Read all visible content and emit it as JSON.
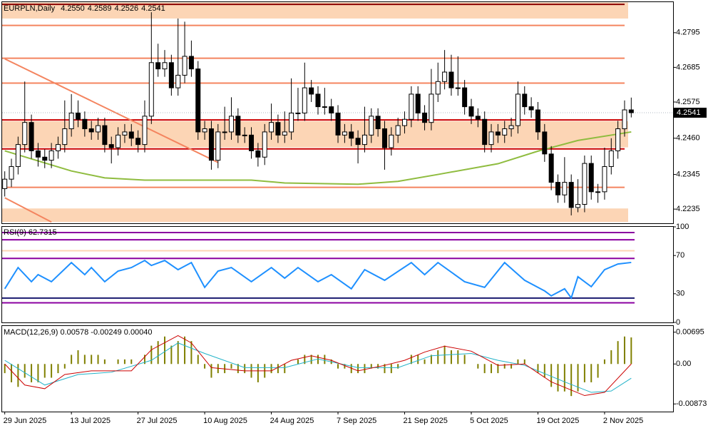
{
  "chart_data": [
    {
      "type": "candlestick",
      "symbol_label": "EURPLN,Daily",
      "ohlc_labels": [
        "4.2550",
        "4.2589",
        "4.2526",
        "4.2541"
      ],
      "categories": [
        "29 Jun 2025",
        null,
        null,
        null,
        null,
        null,
        null,
        null,
        null,
        null,
        "13 Jul 2025",
        null,
        null,
        null,
        null,
        null,
        null,
        null,
        null,
        null,
        "27 Jul 2025",
        null,
        null,
        null,
        null,
        null,
        null,
        null,
        null,
        null,
        "10 Aug 2025",
        null,
        null,
        null,
        null,
        null,
        null,
        null,
        null,
        null,
        "24 Aug 2025",
        null,
        null,
        null,
        null,
        null,
        null,
        null,
        null,
        null,
        "7 Sep 2025",
        null,
        null,
        null,
        null,
        null,
        null,
        null,
        null,
        null,
        "21 Sep 2025",
        null,
        null,
        null,
        null,
        null,
        null,
        null,
        null,
        null,
        "5 Oct 2025",
        null,
        null,
        null,
        null,
        null,
        null,
        null,
        null,
        null,
        "19 Oct 2025",
        null,
        null,
        null,
        null,
        null,
        null,
        null,
        null,
        null,
        "2 Nov 2025",
        null,
        null,
        null,
        null
      ],
      "open": [
        4.23,
        4.233,
        4.237,
        4.244,
        4.251,
        4.242,
        4.24,
        4.239,
        4.242,
        4.244,
        4.249,
        4.254,
        4.252,
        4.249,
        4.248,
        4.25,
        4.244,
        4.243,
        4.247,
        4.248,
        4.246,
        4.244,
        4.253,
        4.27,
        4.268,
        4.27,
        4.262,
        4.266,
        4.272,
        4.268,
        4.248,
        4.249,
        4.239,
        4.248,
        4.248,
        4.253,
        4.247,
        4.247,
        4.242,
        4.24,
        4.248,
        4.251,
        4.247,
        4.248,
        4.254,
        4.254,
        4.262,
        4.26,
        4.256,
        4.256,
        4.254,
        4.247,
        4.248,
        4.246,
        4.244,
        4.247,
        4.253,
        4.249,
        4.243,
        4.247,
        4.25,
        4.252,
        4.26,
        4.254,
        4.251,
        4.26,
        4.264,
        4.267,
        4.262,
        4.262,
        4.256,
        4.253,
        4.252,
        4.244,
        4.248,
        4.247,
        4.249,
        4.25,
        4.26,
        4.256,
        4.255,
        4.248,
        4.241,
        4.232,
        4.228,
        4.232,
        4.224,
        4.225,
        4.238,
        4.229,
        4.229,
        4.237,
        4.242,
        4.249,
        4.255
      ],
      "high": [
        4.2355,
        4.2395,
        4.2465,
        4.264,
        4.2535,
        4.2445,
        4.2425,
        4.2445,
        4.2465,
        4.258,
        4.26,
        4.258,
        4.2545,
        4.2515,
        4.2525,
        4.2525,
        4.2465,
        4.2495,
        4.2505,
        4.2505,
        4.2485,
        4.258,
        4.286,
        4.276,
        4.274,
        4.2725,
        4.284,
        4.283,
        4.277,
        4.2705,
        4.2515,
        4.2515,
        4.2505,
        4.256,
        4.259,
        4.2555,
        4.2495,
        4.2495,
        4.2445,
        4.2505,
        4.257,
        4.2535,
        4.2545,
        4.265,
        4.262,
        4.27,
        4.2645,
        4.2625,
        4.262,
        4.2585,
        4.2565,
        4.2505,
        4.2505,
        4.2485,
        4.256,
        4.2555,
        4.2555,
        4.2515,
        4.2495,
        4.2525,
        4.2545,
        4.2625,
        4.2625,
        4.2565,
        4.268,
        4.27,
        4.274,
        4.2725,
        4.272,
        4.2645,
        4.2585,
        4.2555,
        4.2545,
        4.2505,
        4.2505,
        4.2515,
        4.2525,
        4.264,
        4.2625,
        4.259,
        4.2575,
        4.2505,
        4.2435,
        4.2345,
        4.24,
        4.2345,
        4.233,
        4.2405,
        4.2405,
        4.2315,
        4.243,
        4.246,
        4.2515,
        4.258,
        4.2589
      ],
      "low": [
        4.2275,
        4.2305,
        4.2345,
        4.2415,
        4.2395,
        4.237,
        4.2365,
        4.2365,
        4.2395,
        4.2415,
        4.2465,
        4.2495,
        4.2465,
        4.2455,
        4.2455,
        4.2415,
        4.238,
        4.2405,
        4.2445,
        4.2435,
        4.2415,
        4.2415,
        4.2505,
        4.2655,
        4.2655,
        4.2595,
        4.2595,
        4.2635,
        4.2655,
        4.2455,
        4.2455,
        4.236,
        4.2365,
        4.2455,
        4.2455,
        4.2445,
        4.2445,
        4.2395,
        4.237,
        4.2375,
        4.2455,
        4.2445,
        4.2445,
        4.2455,
        4.2515,
        4.2515,
        4.2575,
        4.2535,
        4.2535,
        4.2515,
        4.2445,
        4.2445,
        4.2435,
        4.238,
        4.2415,
        4.2445,
        4.2465,
        4.236,
        4.2405,
        4.2445,
        4.2475,
        4.2495,
        4.2515,
        4.2485,
        4.2485,
        4.2575,
        4.2615,
        4.2595,
        4.2595,
        4.2535,
        4.2505,
        4.2495,
        4.2415,
        4.2415,
        4.2445,
        4.2445,
        4.2465,
        4.2475,
        4.2535,
        4.2525,
        4.2455,
        4.2385,
        4.2295,
        4.2255,
        4.2255,
        4.2215,
        4.2225,
        4.2225,
        4.2265,
        4.2255,
        4.2265,
        4.2345,
        4.2395,
        4.2465,
        4.2526
      ],
      "close": [
        4.233,
        4.237,
        4.244,
        4.251,
        4.242,
        4.24,
        4.239,
        4.242,
        4.244,
        4.249,
        4.254,
        4.252,
        4.249,
        4.248,
        4.25,
        4.244,
        4.243,
        4.247,
        4.248,
        4.246,
        4.244,
        4.253,
        4.27,
        4.268,
        4.27,
        4.262,
        4.266,
        4.272,
        4.268,
        4.248,
        4.249,
        4.239,
        4.248,
        4.248,
        4.253,
        4.247,
        4.247,
        4.242,
        4.24,
        4.248,
        4.251,
        4.247,
        4.248,
        4.254,
        4.254,
        4.262,
        4.26,
        4.256,
        4.256,
        4.254,
        4.247,
        4.248,
        4.246,
        4.244,
        4.247,
        4.253,
        4.249,
        4.243,
        4.247,
        4.25,
        4.252,
        4.26,
        4.254,
        4.251,
        4.26,
        4.264,
        4.267,
        4.262,
        4.262,
        4.256,
        4.253,
        4.252,
        4.244,
        4.248,
        4.247,
        4.249,
        4.25,
        4.26,
        4.256,
        4.255,
        4.248,
        4.241,
        4.232,
        4.228,
        4.232,
        4.224,
        4.225,
        4.238,
        4.229,
        4.229,
        4.237,
        4.242,
        4.249,
        4.255,
        4.2541
      ],
      "ylim": [
        4.219,
        4.2892
      ],
      "yticks": [
        4.2795,
        4.2685,
        4.2575,
        {
          "value": 4.246,
          "label": "4.2460"
        },
        4.2345,
        4.2235
      ],
      "last_price": {
        "value": 4.2541,
        "label": "4.2541"
      },
      "zones": [
        {
          "from": 4.284,
          "to": 4.2891,
          "color": "#fcd5b5"
        },
        {
          "from": 4.2431,
          "to": 4.2514,
          "color": "#fcd5b5"
        },
        {
          "from": 4.2194,
          "to": 4.2237,
          "color": "#fcd5b5"
        }
      ],
      "levels": [
        {
          "value": 4.2885,
          "color": "#8b0000"
        },
        {
          "value": 4.2818,
          "color": "#f4845f"
        },
        {
          "value": 4.2714,
          "color": "#f4845f"
        },
        {
          "value": 4.2635,
          "color": "#f4845f"
        },
        {
          "value": 4.2518,
          "color": "#cc0000"
        },
        {
          "value": 4.2426,
          "color": "#cc0000"
        },
        {
          "value": 4.2304,
          "color": "#f4845f"
        }
      ],
      "trendlines": [
        {
          "from": [
            0,
            4.2712
          ],
          "to": [
            32,
            4.2383
          ],
          "color": "#f4845f"
        },
        {
          "from": [
            0,
            4.2271
          ],
          "to": [
            7,
            4.2194
          ],
          "color": "#f4845f"
        }
      ],
      "ma": {
        "color": "#8fbc3f",
        "x": [
          0,
          10,
          15,
          21,
          37,
          42,
          53,
          59,
          65,
          74,
          80,
          86,
          94
        ],
        "values": [
          4.242,
          4.2356,
          4.2334,
          4.2327,
          4.2327,
          4.2318,
          4.2314,
          4.2323,
          4.2345,
          4.2379,
          4.2419,
          4.2453,
          4.248
        ]
      }
    },
    {
      "type": "line",
      "label": "RSI(9) 62.7315",
      "color": "#1e90ff",
      "ylim": [
        0,
        100
      ],
      "yticks": [
        100,
        70,
        30,
        0
      ],
      "levels": [
        {
          "value": 94,
          "color": "#8b00a0"
        },
        {
          "value": 86.5,
          "color": "#8b00a0"
        },
        {
          "value": 75,
          "color": "#fcd5b5"
        },
        {
          "value": 67,
          "color": "#8b00a0"
        },
        {
          "value": 25.5,
          "color": "#191970"
        },
        {
          "value": 20.5,
          "color": "#8b00a0"
        }
      ],
      "x": [
        0,
        2,
        4,
        5,
        7,
        10,
        12,
        13,
        15,
        17,
        19,
        21,
        22,
        24,
        26,
        28,
        30,
        32,
        34,
        37,
        40,
        42,
        44,
        47,
        49,
        52,
        54,
        57,
        61,
        63,
        65,
        69,
        72,
        75,
        78,
        81,
        82,
        84,
        85,
        86,
        88,
        90,
        92,
        94
      ],
      "values": [
        35.2,
        57.4,
        42.6,
        50,
        42.6,
        62.6,
        50,
        57.4,
        42.6,
        53.7,
        57.4,
        64.8,
        59.6,
        64.8,
        55.2,
        62.6,
        36.7,
        53.7,
        57.4,
        42.6,
        57.4,
        46.3,
        57.4,
        42.6,
        50,
        35.2,
        55.2,
        44.1,
        62.6,
        50,
        62.6,
        42.6,
        36.7,
        62.6,
        44.1,
        33,
        27.8,
        35.2,
        25.6,
        47.8,
        37.4,
        55.2,
        61.1,
        62.73
      ]
    },
    {
      "type": "macd",
      "label": "MACD(12,26,9) 0.00578 -0.00249 0.00040",
      "ylim": [
        -0.0104,
        0.0083
      ],
      "yticks": [
        0.00695,
        {
          "value": 0,
          "label": "0.00"
        },
        -0.00873
      ],
      "histogram": {
        "color": "#808000",
        "values": [
          -0.002,
          -0.004,
          -0.005,
          -0.003,
          -0.004,
          -0.004,
          -0.003,
          -0.003,
          -0.002,
          -0.001,
          0.002,
          0.003,
          0.002,
          0.002,
          0.002,
          0.001,
          0.0,
          0.001,
          0.001,
          0.001,
          0.0,
          0.002,
          0.004,
          0.005,
          0.006,
          0.004,
          0.005,
          0.006,
          0.005,
          0.002,
          -0.001,
          -0.003,
          -0.002,
          -0.002,
          -0.001,
          -0.002,
          -0.002,
          -0.003,
          -0.004,
          -0.003,
          -0.002,
          -0.002,
          -0.002,
          0.0,
          0.001,
          0.002,
          0.002,
          0.002,
          0.002,
          0.001,
          -0.001,
          -0.001,
          -0.002,
          -0.002,
          -0.002,
          -0.001,
          -0.001,
          -0.002,
          -0.002,
          -0.001,
          0.0,
          0.002,
          0.002,
          0.001,
          0.002,
          0.003,
          0.004,
          0.003,
          0.003,
          0.002,
          0.0,
          -0.001,
          -0.002,
          -0.002,
          -0.002,
          -0.001,
          -0.001,
          0.001,
          0.001,
          0.0,
          -0.002,
          -0.003,
          -0.005,
          -0.006,
          -0.006,
          -0.007,
          -0.006,
          -0.004,
          -0.004,
          -0.003,
          0.001,
          0.003,
          0.005,
          0.006,
          0.0058
        ]
      },
      "main": {
        "color": "#cc0000",
        "x": [
          0,
          3,
          6,
          9,
          13,
          19,
          22,
          26,
          28,
          31,
          36,
          40,
          43,
          46,
          49,
          53,
          57,
          60,
          63,
          66,
          70,
          74,
          78,
          82,
          87,
          90,
          94
        ],
        "values": [
          0,
          -0.0046,
          -0.0054,
          -0.0023,
          -0.0015,
          -0.0015,
          0.0031,
          0.0062,
          0.0046,
          -0.0008,
          -0.0015,
          -0.0015,
          0.0008,
          0.0018,
          0.0008,
          -0.0015,
          -0.0003,
          0.0008,
          0.0026,
          0.0039,
          0.0028,
          -0.0003,
          0,
          -0.0039,
          -0.0069,
          -0.0062,
          0
        ]
      },
      "signal": {
        "color": "#20b2c8",
        "x": [
          0,
          6,
          11,
          16,
          22,
          26,
          30,
          36,
          42,
          47,
          53,
          59,
          64,
          70,
          74,
          78,
          84,
          88,
          91,
          94
        ],
        "values": [
          0.0008,
          -0.0046,
          -0.0023,
          -0.0018,
          0.0008,
          0.0046,
          0.0023,
          -0.0008,
          -0.0008,
          0.0011,
          -0.0008,
          -0.0008,
          0.0018,
          0.0023,
          0.0008,
          -0.0003,
          -0.0039,
          -0.0062,
          -0.0059,
          -0.0031
        ]
      }
    }
  ]
}
